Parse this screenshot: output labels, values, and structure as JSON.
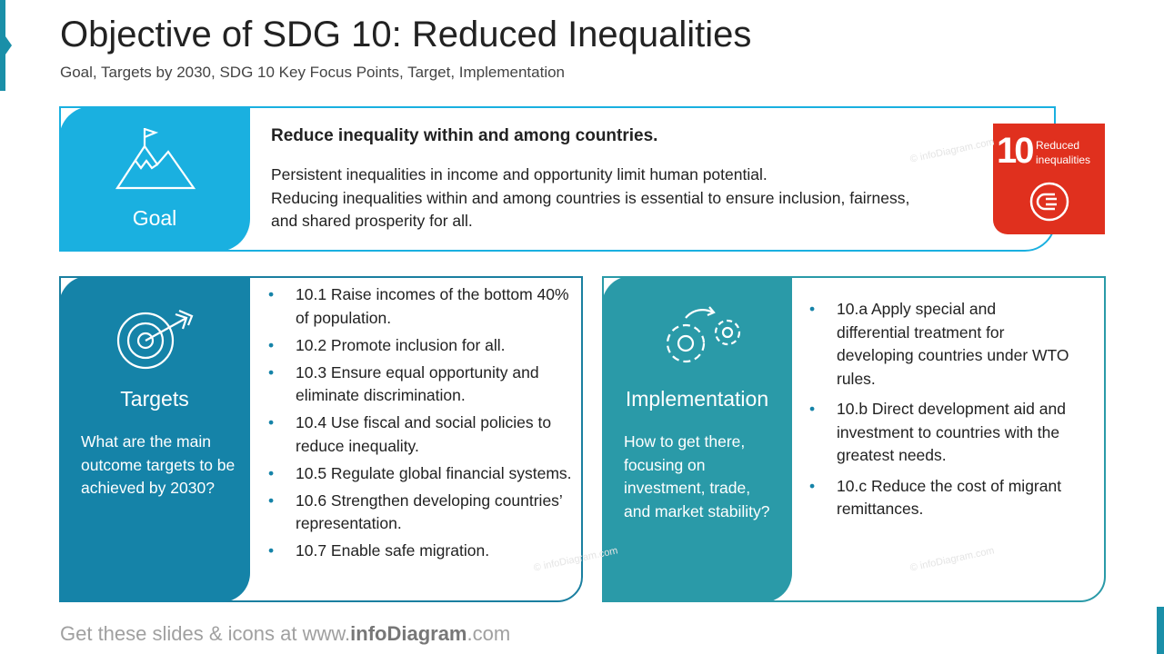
{
  "header": {
    "title": "Objective of SDG 10: Reduced Inequalities",
    "subtitle": "Goal, Targets by 2030, SDG 10 Key Focus Points, Target, Implementation"
  },
  "goal": {
    "label": "Goal",
    "heading": "Reduce inequality within and among countries.",
    "body": [
      "Persistent inequalities in income and opportunity limit human potential.",
      "Reducing inequalities within and among countries is essential to ensure inclusion, fairness, and shared prosperity for all."
    ]
  },
  "badge": {
    "number": "10",
    "text": "Reduced inequalities"
  },
  "targets": {
    "label": "Targets",
    "question": "What are the main outcome targets to be achieved by 2030?",
    "items": [
      "10.1 Raise incomes of the bottom 40% of population.",
      "10.2 Promote inclusion for all.",
      "10.3 Ensure equal opportunity and eliminate discrimination.",
      "10.4 Use fiscal and social policies to reduce inequality.",
      "10.5 Regulate global financial systems.",
      "10.6 Strengthen developing countries’ representation.",
      "10.7 Enable safe migration."
    ]
  },
  "implementation": {
    "label": "Implementation",
    "question": "How to get there, focusing on investment, trade, and market stability?",
    "items": [
      "10.a Apply special and differential treatment for developing countries under WTO rules.",
      "10.b Direct development aid and investment to countries with the greatest needs.",
      "10.c Reduce the cost of migrant remittances."
    ]
  },
  "watermark": "© infoDiagram.com",
  "footer": {
    "prefix": "Get these slides & icons at www.",
    "brand": "infoDiagram",
    "suffix": ".com"
  }
}
